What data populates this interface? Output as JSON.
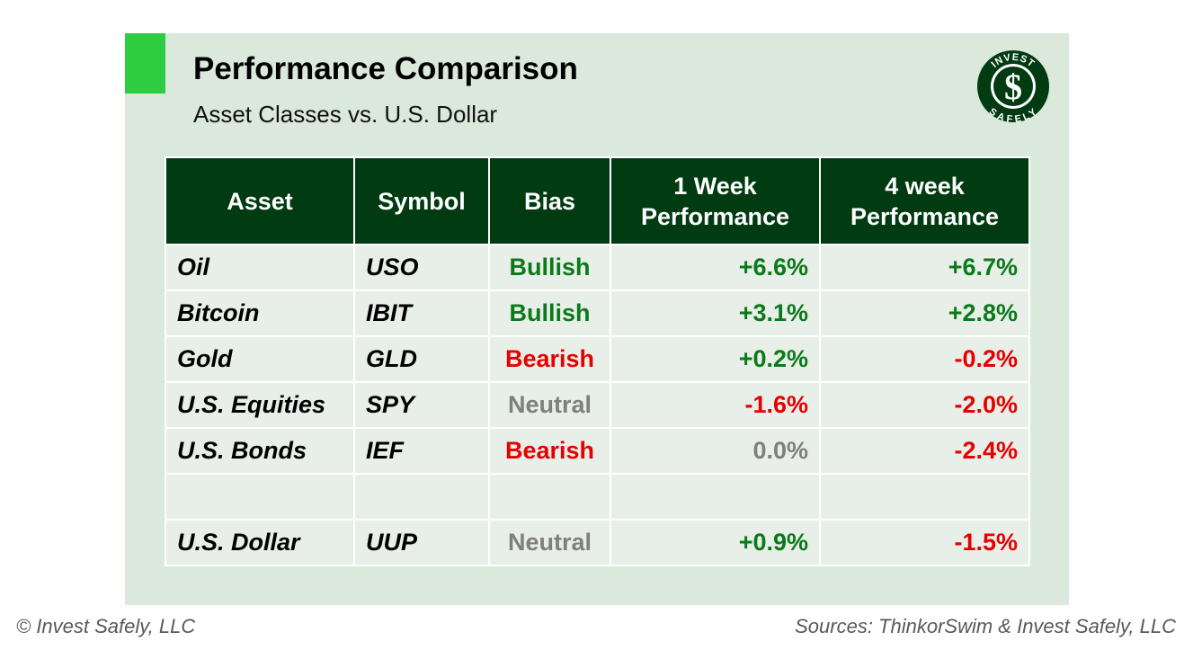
{
  "header": {
    "title": "Performance Comparison",
    "subtitle": "Asset Classes vs. U.S. Dollar",
    "accent_color": "#2ecc40",
    "panel_color": "#dbe8dc"
  },
  "logo": {
    "top_text": "INVEST",
    "bottom_text": "SAFELY",
    "symbol": "$",
    "color": "#003b12"
  },
  "table": {
    "header_color": "#003b12",
    "columns": [
      "Asset",
      "Symbol",
      "Bias",
      "1 Week Performance",
      "4 week Performance"
    ],
    "column_lines": [
      [
        "Asset"
      ],
      [
        "Symbol"
      ],
      [
        "Bias"
      ],
      [
        "1 Week",
        "Performance"
      ],
      [
        "4 week",
        "Performance"
      ]
    ],
    "rows": [
      {
        "asset": "Oil",
        "symbol": "USO",
        "bias": "Bullish",
        "bias_tone": "pos",
        "w1": "+6.6%",
        "w1_tone": "pos",
        "w4": "+6.7%",
        "w4_tone": "pos"
      },
      {
        "asset": "Bitcoin",
        "symbol": "IBIT",
        "bias": "Bullish",
        "bias_tone": "pos",
        "w1": "+3.1%",
        "w1_tone": "pos",
        "w4": "+2.8%",
        "w4_tone": "pos"
      },
      {
        "asset": "Gold",
        "symbol": "GLD",
        "bias": "Bearish",
        "bias_tone": "neg",
        "w1": "+0.2%",
        "w1_tone": "pos",
        "w4": "-0.2%",
        "w4_tone": "neg"
      },
      {
        "asset": "U.S. Equities",
        "symbol": "SPY",
        "bias": "Neutral",
        "bias_tone": "neu",
        "w1": "-1.6%",
        "w1_tone": "neg",
        "w4": "-2.0%",
        "w4_tone": "neg"
      },
      {
        "asset": "U.S. Bonds",
        "symbol": "IEF",
        "bias": "Bearish",
        "bias_tone": "neg",
        "w1": "0.0%",
        "w1_tone": "neu",
        "w4": "-2.4%",
        "w4_tone": "neg"
      }
    ],
    "dollar_row": {
      "asset": "U.S. Dollar",
      "symbol": "UUP",
      "bias": "Neutral",
      "bias_tone": "neu",
      "w1": "+0.9%",
      "w1_tone": "pos",
      "w4": "-1.5%",
      "w4_tone": "neg"
    },
    "colors": {
      "pos": "#0a7a1a",
      "neg": "#e60000",
      "neu": "#7f7f7f"
    }
  },
  "footer": {
    "left": "© Invest Safely, LLC",
    "right": "Sources: ThinkorSwim & Invest Safely, LLC"
  }
}
